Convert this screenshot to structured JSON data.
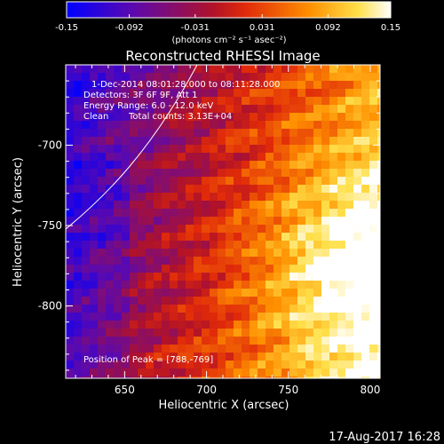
{
  "chart_data": {
    "type": "heatmap",
    "title": "Reconstructed RHESSI Image",
    "xlabel": "Heliocentric X (arcsec)",
    "ylabel": "Heliocentric Y (arcsec)",
    "xlim": [
      614,
      806
    ],
    "ylim": [
      -845,
      -650
    ],
    "x_ticks": [
      "650",
      "700",
      "750",
      "800"
    ],
    "y_ticks": [
      "-700",
      "-750",
      "-800"
    ],
    "colorbar": {
      "ticks": [
        "-0.15",
        "-0.092",
        "-0.031",
        "0.031",
        "0.092",
        "0.15"
      ],
      "range": [
        -0.15,
        0.15
      ],
      "unit_label": "(photons cm⁻² s⁻¹ asec⁻²)",
      "colors": [
        "#0000ff",
        "#6a0aa8",
        "#d2151a",
        "#ff7a00",
        "#ffe040",
        "#ffffff"
      ]
    },
    "annotations": [
      "1-Dec-2014 08:01:28.000 to 08:11:28.000",
      "Detectors: 3F 6F 9F, Att 1",
      "Energy Range: 6.0 - 12.0 keV",
      "Clean",
      "Total counts: 3.13E+04"
    ],
    "peak": {
      "label": "Position of Peak = [788,-769]",
      "x": 788,
      "y": -769
    },
    "limb_curve": "visible"
  },
  "footer": {
    "timestamp": "17-Aug-2017 16:28"
  }
}
